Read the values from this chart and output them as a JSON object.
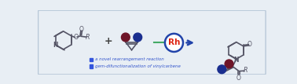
{
  "bg_color": "#e8eef4",
  "border_color": "#b8c8d8",
  "arrow_color": "#2244aa",
  "rh_circle_color": "#2244aa",
  "rh_text_color": "#dd2211",
  "rh_text": "Rh",
  "green_line_color": "#44aa66",
  "plus_color": "#444444",
  "dark_red": "#6e1528",
  "dark_blue": "#1a2e8f",
  "bond_color": "#555566",
  "legend_text_color": "#3355cc",
  "legend1": "a novel rearrangement reaction",
  "legend2": "gem-difunctionalization of vinylcarbene",
  "legend_sq1_color": "#3355dd",
  "legend_sq2_color": "#3355dd"
}
